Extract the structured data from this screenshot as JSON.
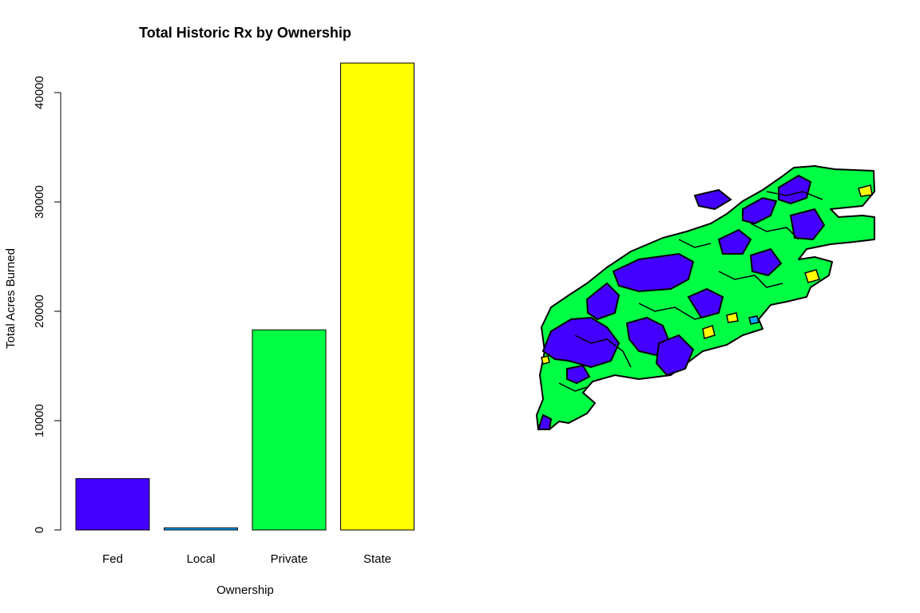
{
  "chart_data": {
    "type": "bar",
    "title": "Total Historic Rx by Ownership",
    "xlabel": "Ownership",
    "ylabel": "Total Acres Burned",
    "categories": [
      "Fed",
      "Local",
      "Private",
      "State"
    ],
    "values": [
      4700,
      200,
      18300,
      42700
    ],
    "colors": [
      "#4400ff",
      "#00aaff",
      "#00ff44",
      "#ffff00"
    ],
    "yticks": [
      "0",
      "10000",
      "20000",
      "30000",
      "40000"
    ],
    "ylim": [
      0,
      40000
    ],
    "grid": false
  },
  "map": {
    "fill_colors": {
      "fed": "#4400ff",
      "private": "#00ff44",
      "state": "#ffff00",
      "local": "#00aaff"
    }
  }
}
